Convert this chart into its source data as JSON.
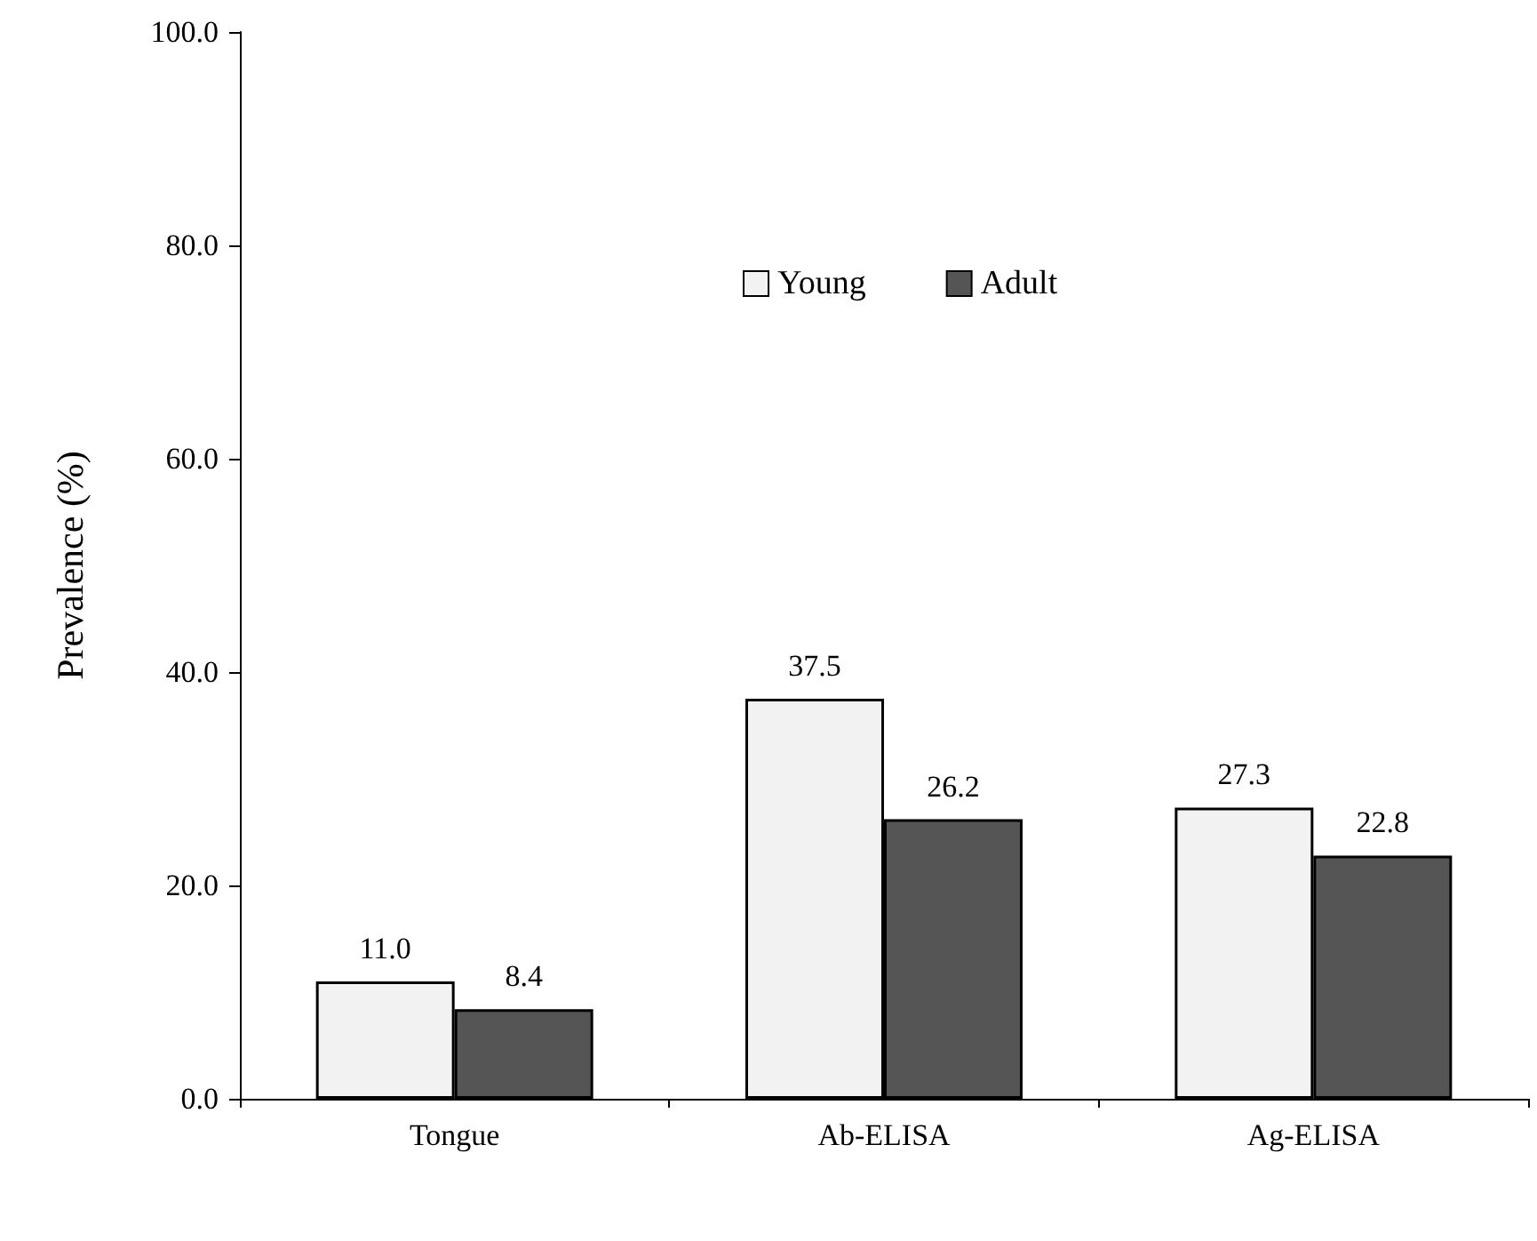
{
  "chart_data": {
    "type": "bar",
    "ylabel": "Prevalence (%)",
    "categories": [
      "Tongue",
      "Ab-ELISA",
      "Ag-ELISA"
    ],
    "series": [
      {
        "name": "Young",
        "color": "#f2f2f2",
        "values": [
          11.0,
          37.5,
          27.3
        ],
        "value_labels": [
          "11.0",
          "37.5",
          "27.3"
        ]
      },
      {
        "name": "Adult",
        "color": "#555555",
        "values": [
          8.4,
          26.2,
          22.8
        ],
        "value_labels": [
          "8.4",
          "26.2",
          "22.8"
        ]
      }
    ],
    "ylim": [
      0,
      100
    ],
    "yticks": [
      {
        "value": 0,
        "label": "0.0"
      },
      {
        "value": 20,
        "label": "20.0"
      },
      {
        "value": 40,
        "label": "40.0"
      },
      {
        "value": 60,
        "label": "60.0"
      },
      {
        "value": 80,
        "label": "80.0"
      },
      {
        "value": 100,
        "label": "100.0"
      }
    ],
    "grid": false,
    "legend": "top"
  }
}
